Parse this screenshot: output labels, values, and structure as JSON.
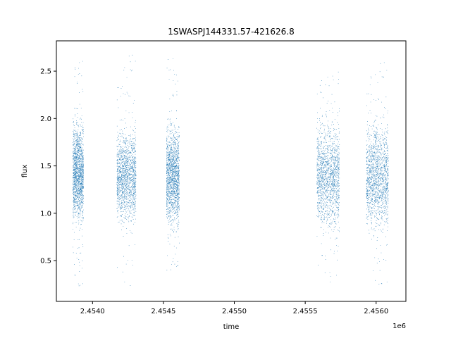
{
  "chart_data": {
    "type": "scatter",
    "title": "1SWASPJ144331.57-421626.8",
    "xlabel": "time",
    "ylabel": "flux",
    "x_offset_label": "1e6",
    "xlim": [
      2453745,
      2456210
    ],
    "ylim": [
      0.07,
      2.82
    ],
    "x_ticks": [
      2.454,
      2.4545,
      2.455,
      2.4555,
      2.456
    ],
    "x_tick_labels": [
      "2.4540",
      "2.4545",
      "2.4550",
      "2.4555",
      "2.4560"
    ],
    "y_ticks": [
      0.5,
      1.0,
      1.5,
      2.0,
      2.5
    ],
    "y_tick_labels": [
      "0.5",
      "1.0",
      "1.5",
      "2.0",
      "2.5"
    ],
    "grid": false,
    "marker_color": "#1f77b4",
    "clusters": [
      {
        "x_range": [
          2453860,
          2453935
        ],
        "median": 1.43,
        "spread": [
          0.95,
          1.88
        ],
        "outliers": [
          0.2,
          2.7
        ]
      },
      {
        "x_range": [
          2454170,
          2454305
        ],
        "median": 1.4,
        "spread": [
          1.0,
          1.85
        ],
        "outliers": [
          0.2,
          2.68
        ]
      },
      {
        "x_range": [
          2454520,
          2454610
        ],
        "median": 1.4,
        "spread": [
          0.95,
          1.9
        ],
        "outliers": [
          0.4,
          2.66
        ]
      },
      {
        "x_range": [
          2455580,
          2455740
        ],
        "median": 1.4,
        "spread": [
          0.95,
          1.95
        ],
        "outliers": [
          0.25,
          2.5
        ]
      },
      {
        "x_range": [
          2455930,
          2456085
        ],
        "median": 1.4,
        "spread": [
          0.95,
          1.95
        ],
        "outliers": [
          0.22,
          2.6
        ]
      }
    ]
  }
}
